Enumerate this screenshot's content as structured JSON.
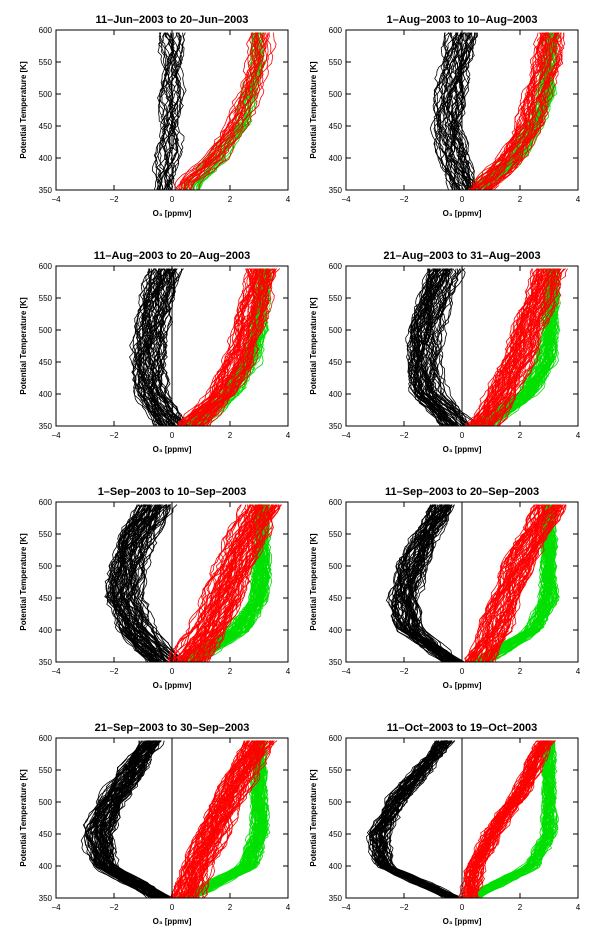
{
  "chart_data": [
    {
      "type": "line",
      "title": "11–Jun–2003 to 20–Jun–2003",
      "xlabel": "O₃ [ppmv]",
      "ylabel": "Potential Temperature [K]",
      "xlim": [
        -4,
        4
      ],
      "ylim": [
        350,
        600
      ],
      "xticks": [
        "−4",
        "−2",
        "0",
        "2",
        "4"
      ],
      "yticks": [
        "350",
        "400",
        "450",
        "500",
        "550",
        "600"
      ],
      "colors": {
        "black": "#000000",
        "red": "#ff0000",
        "green": "#00e000"
      },
      "series": [
        {
          "color": "black",
          "x": [
            -0.2,
            -0.1,
            0.0,
            0.0,
            0.1,
            0.0
          ],
          "y": [
            360,
            400,
            450,
            500,
            550,
            600
          ]
        },
        {
          "color": "red",
          "x": [
            0.5,
            1.5,
            2.2,
            2.7,
            3.0,
            3.1
          ],
          "y": [
            360,
            400,
            450,
            500,
            550,
            600
          ]
        },
        {
          "color": "green",
          "x": [
            0.6,
            1.6,
            2.3,
            2.7,
            2.9,
            3.0
          ],
          "y": [
            360,
            400,
            450,
            500,
            550,
            600
          ]
        }
      ]
    },
    {
      "type": "line",
      "title": "1–Aug–2003 to 10–Aug–2003",
      "xlabel": "O₃ [ppmv]",
      "ylabel": "Potential Temperature [K]",
      "xlim": [
        -4,
        4
      ],
      "ylim": [
        350,
        600
      ],
      "xticks": [
        "−4",
        "−2",
        "0",
        "2",
        "4"
      ],
      "yticks": [
        "350",
        "400",
        "450",
        "500",
        "550",
        "600"
      ],
      "colors": {
        "black": "#000000",
        "red": "#ff0000",
        "green": "#00e000"
      },
      "series": [
        {
          "color": "black",
          "x": [
            0.1,
            -0.3,
            -0.5,
            -0.4,
            -0.2,
            0.0
          ],
          "y": [
            350,
            400,
            450,
            500,
            550,
            600
          ]
        },
        {
          "color": "red",
          "x": [
            0.6,
            1.7,
            2.3,
            2.6,
            2.9,
            3.1
          ],
          "y": [
            350,
            400,
            450,
            500,
            550,
            600
          ]
        },
        {
          "color": "green",
          "x": [
            0.6,
            1.8,
            2.5,
            2.9,
            3.0,
            3.1
          ],
          "y": [
            350,
            400,
            450,
            500,
            550,
            600
          ]
        }
      ]
    },
    {
      "type": "line",
      "title": "11–Aug–2003 to 20–Aug–2003",
      "xlabel": "O₃ [ppmv]",
      "ylabel": "Potential Temperature [K]",
      "xlim": [
        -4,
        4
      ],
      "ylim": [
        350,
        600
      ],
      "xticks": [
        "−4",
        "−2",
        "0",
        "2",
        "4"
      ],
      "yticks": [
        "350",
        "400",
        "450",
        "500",
        "550",
        "600"
      ],
      "colors": {
        "black": "#000000",
        "red": "#ff0000",
        "green": "#00e000"
      },
      "series": [
        {
          "color": "black",
          "x": [
            0.0,
            -0.7,
            -0.8,
            -0.7,
            -0.5,
            -0.2
          ],
          "y": [
            350,
            400,
            450,
            500,
            550,
            600
          ]
        },
        {
          "color": "red",
          "x": [
            0.7,
            1.7,
            2.3,
            2.6,
            2.9,
            3.1
          ],
          "y": [
            350,
            400,
            450,
            500,
            550,
            600
          ]
        },
        {
          "color": "green",
          "x": [
            0.7,
            2.0,
            2.7,
            3.0,
            3.1,
            3.2
          ],
          "y": [
            350,
            400,
            450,
            500,
            550,
            600
          ]
        }
      ]
    },
    {
      "type": "line",
      "title": "21–Aug–2003 to 31–Aug–2003",
      "xlabel": "O₃ [ppmv]",
      "ylabel": "Potential Temperature [K]",
      "xlim": [
        -4,
        4
      ],
      "ylim": [
        350,
        600
      ],
      "xticks": [
        "−4",
        "−2",
        "0",
        "2",
        "4"
      ],
      "yticks": [
        "350",
        "400",
        "450",
        "500",
        "550",
        "600"
      ],
      "colors": {
        "black": "#000000",
        "red": "#ff0000",
        "green": "#00e000"
      },
      "series": [
        {
          "color": "black",
          "x": [
            -0.1,
            -1.1,
            -1.3,
            -1.2,
            -0.9,
            -0.5
          ],
          "y": [
            350,
            400,
            450,
            500,
            550,
            600
          ]
        },
        {
          "color": "red",
          "x": [
            0.7,
            1.4,
            1.9,
            2.3,
            2.7,
            3.1
          ],
          "y": [
            350,
            400,
            450,
            500,
            550,
            600
          ]
        },
        {
          "color": "green",
          "x": [
            0.7,
            2.2,
            2.9,
            3.0,
            3.1,
            3.1
          ],
          "y": [
            350,
            400,
            450,
            500,
            550,
            600
          ]
        }
      ]
    },
    {
      "type": "line",
      "title": "1–Sep–2003 to 10–Sep–2003",
      "xlabel": "O₃ [ppmv]",
      "ylabel": "Potential Temperature [K]",
      "xlim": [
        -4,
        4
      ],
      "ylim": [
        350,
        600
      ],
      "xticks": [
        "−4",
        "−2",
        "0",
        "2",
        "4"
      ],
      "yticks": [
        "350",
        "400",
        "450",
        "500",
        "550",
        "600"
      ],
      "colors": {
        "black": "#000000",
        "red": "#ff0000",
        "green": "#00e000"
      },
      "series": [
        {
          "color": "black",
          "x": [
            -0.2,
            -1.2,
            -1.6,
            -1.5,
            -1.1,
            -0.5
          ],
          "y": [
            350,
            400,
            450,
            500,
            550,
            600
          ]
        },
        {
          "color": "red",
          "x": [
            0.5,
            1.2,
            1.7,
            2.1,
            2.6,
            3.1
          ],
          "y": [
            350,
            400,
            450,
            500,
            550,
            600
          ]
        },
        {
          "color": "green",
          "x": [
            0.6,
            2.3,
            3.0,
            3.1,
            3.1,
            3.1
          ],
          "y": [
            350,
            400,
            450,
            500,
            550,
            600
          ]
        }
      ]
    },
    {
      "type": "line",
      "title": "11–Sep–2003 to 20–Sep–2003",
      "xlabel": "O₃ [ppmv]",
      "ylabel": "Potential Temperature [K]",
      "xlim": [
        -4,
        4
      ],
      "ylim": [
        350,
        600
      ],
      "xticks": [
        "−4",
        "−2",
        "0",
        "2",
        "4"
      ],
      "yticks": [
        "350",
        "400",
        "450",
        "500",
        "550",
        "600"
      ],
      "colors": {
        "black": "#000000",
        "red": "#ff0000",
        "green": "#00e000"
      },
      "series": [
        {
          "color": "black",
          "x": [
            -0.3,
            -1.8,
            -2.0,
            -1.7,
            -1.2,
            -0.6
          ],
          "y": [
            350,
            400,
            450,
            500,
            550,
            600
          ]
        },
        {
          "color": "red",
          "x": [
            0.6,
            1.1,
            1.5,
            1.9,
            2.5,
            3.1
          ],
          "y": [
            350,
            400,
            450,
            500,
            550,
            600
          ]
        },
        {
          "color": "green",
          "x": [
            0.6,
            2.5,
            3.0,
            3.0,
            3.0,
            3.0
          ],
          "y": [
            350,
            400,
            450,
            500,
            550,
            600
          ]
        }
      ]
    },
    {
      "type": "line",
      "title": "21–Sep–2003 to 30–Sep–2003",
      "xlabel": "O₃ [ppmv]",
      "ylabel": "Potential Temperature [K]",
      "xlim": [
        -4,
        4
      ],
      "ylim": [
        350,
        600
      ],
      "xticks": [
        "−4",
        "−2",
        "0",
        "2",
        "4"
      ],
      "yticks": [
        "350",
        "400",
        "450",
        "500",
        "550",
        "600"
      ],
      "colors": {
        "black": "#000000",
        "red": "#ff0000",
        "green": "#00e000"
      },
      "series": [
        {
          "color": "black",
          "x": [
            -0.4,
            -2.3,
            -2.6,
            -2.1,
            -1.4,
            -0.6
          ],
          "y": [
            350,
            400,
            450,
            500,
            550,
            600
          ]
        },
        {
          "color": "red",
          "x": [
            0.5,
            0.9,
            1.4,
            1.9,
            2.5,
            3.1
          ],
          "y": [
            350,
            400,
            450,
            500,
            550,
            600
          ]
        },
        {
          "color": "green",
          "x": [
            0.5,
            2.6,
            3.0,
            3.0,
            3.0,
            3.0
          ],
          "y": [
            350,
            400,
            450,
            500,
            550,
            600
          ]
        }
      ]
    },
    {
      "type": "line",
      "title": "11–Oct–2003 to 19–Oct–2003",
      "xlabel": "O₃ [ppmv]",
      "ylabel": "Potential Temperature [K]",
      "xlim": [
        -4,
        4
      ],
      "ylim": [
        350,
        600
      ],
      "xticks": [
        "−4",
        "−2",
        "0",
        "2",
        "4"
      ],
      "yticks": [
        "350",
        "400",
        "450",
        "500",
        "550",
        "600"
      ],
      "colors": {
        "black": "#000000",
        "red": "#ff0000",
        "green": "#00e000"
      },
      "series": [
        {
          "color": "black",
          "x": [
            -0.3,
            -2.7,
            -2.9,
            -2.3,
            -1.4,
            -0.5
          ],
          "y": [
            350,
            400,
            450,
            500,
            550,
            600
          ]
        },
        {
          "color": "red",
          "x": [
            0.2,
            0.5,
            1.0,
            1.8,
            2.4,
            2.9
          ],
          "y": [
            350,
            400,
            450,
            500,
            550,
            600
          ]
        },
        {
          "color": "green",
          "x": [
            0.3,
            2.4,
            3.0,
            3.0,
            3.0,
            3.0
          ],
          "y": [
            350,
            400,
            450,
            500,
            550,
            600
          ]
        }
      ]
    }
  ]
}
